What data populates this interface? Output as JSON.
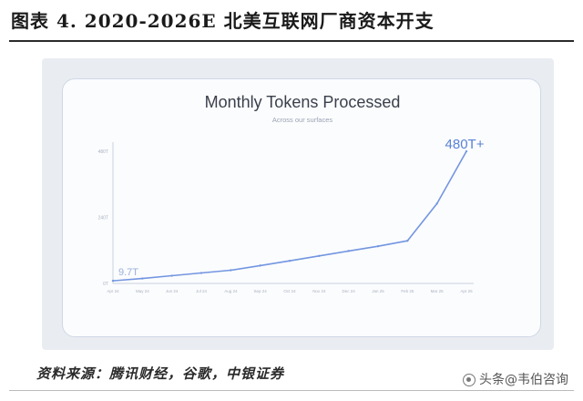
{
  "figure": {
    "title": "图表 4. 2020-2026E 北美互联网厂商资本开支",
    "source": "资料来源：腾讯财经，谷歌，中银证券",
    "watermark": "头条@韦伯咨询"
  },
  "chart_data": {
    "type": "line",
    "title": "Monthly Tokens Processed",
    "subtitle": "Across our surfaces",
    "xlabel": "",
    "ylabel": "",
    "y_unit": "T",
    "ylim": [
      0,
      500
    ],
    "yticks": [
      {
        "value": 0,
        "label": "0T"
      },
      {
        "value": 240,
        "label": "240T"
      },
      {
        "value": 480,
        "label": "480T"
      }
    ],
    "x": [
      "Apr 24",
      "May 24",
      "Jun 24",
      "Jul 24",
      "Aug 24",
      "Sep 24",
      "Oct 24",
      "Nov 24",
      "Dec 24",
      "Jan 25",
      "Feb 25",
      "Mar 25",
      "Apr 25"
    ],
    "series": [
      {
        "name": "",
        "color": "#7396e0",
        "values": [
          9.7,
          18,
          28,
          38,
          48,
          65,
          82,
          100,
          118,
          135,
          155,
          290,
          480
        ]
      }
    ],
    "annotations": [
      {
        "text": "9.7T",
        "x": "Apr 24",
        "y": 9.7,
        "color": "#9ab0d8"
      },
      {
        "text": "480T+",
        "x": "Apr 25",
        "y": 480,
        "color": "#5a82d6"
      }
    ],
    "grid": false,
    "legend": "none"
  }
}
